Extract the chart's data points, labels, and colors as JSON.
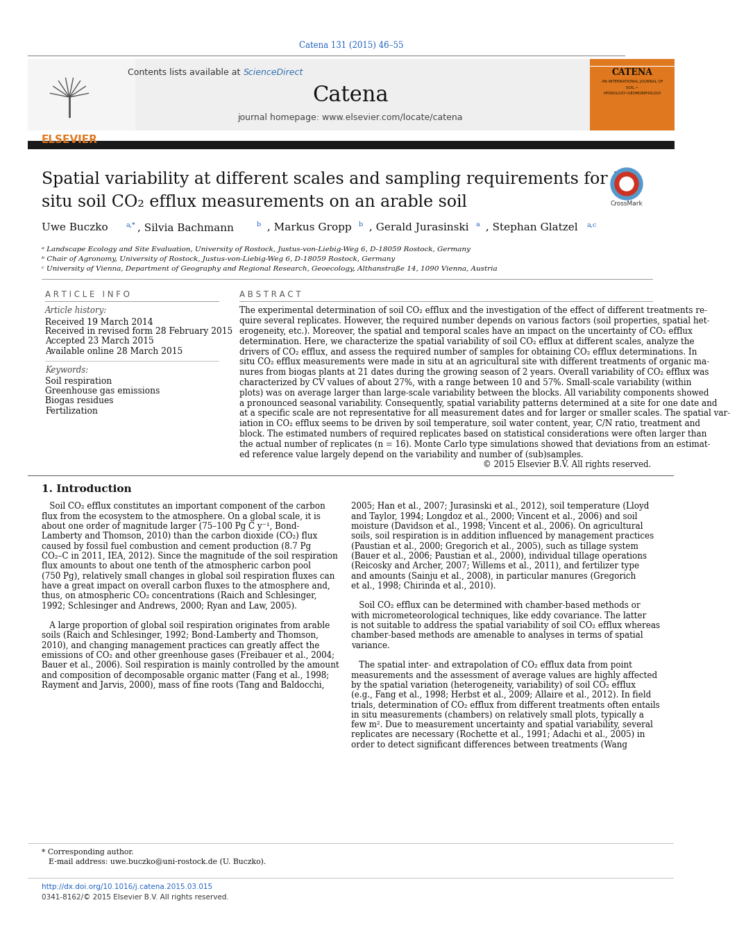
{
  "journal_ref": "Catena 131 (2015) 46–55",
  "journal_name": "Catena",
  "journal_homepage": "journal homepage: www.elsevier.com/locate/catena",
  "title_line1": "Spatial variability at different scales and sampling requirements for in",
  "title_line2": "situ soil CO₂ efflux measurements on an arable soil",
  "affil_a": "ᵃ Landscape Ecology and Site Evaluation, University of Rostock, Justus-von-Liebig-Weg 6, D-18059 Rostock, Germany",
  "affil_b": "ᵇ Chair of Agronomy, University of Rostock, Justus-von-Liebig-Weg 6, D-18059 Rostock, Germany",
  "affil_c": "ᶜ University of Vienna, Department of Geography and Regional Research, Geoecology, Althanstraße 14, 1090 Vienna, Austria",
  "article_info_header": "A R T I C L E   I N F O",
  "abstract_header": "A B S T R A C T",
  "article_history_header": "Article history:",
  "received1": "Received 19 March 2014",
  "received2": "Received in revised form 28 February 2015",
  "accepted": "Accepted 23 March 2015",
  "available": "Available online 28 March 2015",
  "keywords_header": "Keywords:",
  "keyword1": "Soil respiration",
  "keyword2": "Greenhouse gas emissions",
  "keyword3": "Biogas residues",
  "keyword4": "Fertilization",
  "copyright": "© 2015 Elsevier B.V. All rights reserved.",
  "intro_header": "1. Introduction",
  "doi_text": "http://dx.doi.org/10.1016/j.catena.2015.03.015",
  "issn_text": "0341-8162/© 2015 Elsevier B.V. All rights reserved.",
  "bg_color": "#ffffff",
  "orange_color": "#e07820",
  "blue_link": "#2060c0",
  "sci_direct_blue": "#3070b0",
  "abstract_lines": [
    "The experimental determination of soil CO₂ efflux and the investigation of the effect of different treatments re-",
    "quire several replicates. However, the required number depends on various factors (soil properties, spatial het-",
    "erogeneity, etc.). Moreover, the spatial and temporal scales have an impact on the uncertainty of CO₂ efflux",
    "determination. Here, we characterize the spatial variability of soil CO₂ efflux at different scales, analyze the",
    "drivers of CO₂ efflux, and assess the required number of samples for obtaining CO₂ efflux determinations. In",
    "situ CO₂ efflux measurements were made in situ at an agricultural site with different treatments of organic ma-",
    "nures from biogas plants at 21 dates during the growing season of 2 years. Overall variability of CO₂ efflux was",
    "characterized by CV values of about 27%, with a range between 10 and 57%. Small-scale variability (within",
    "plots) was on average larger than large-scale variability between the blocks. All variability components showed",
    "a pronounced seasonal variability. Consequently, spatial variability patterns determined at a site for one date and",
    "at a specific scale are not representative for all measurement dates and for larger or smaller scales. The spatial var-",
    "iation in CO₂ efflux seems to be driven by soil temperature, soil water content, year, C/N ratio, treatment and",
    "block. The estimated numbers of required replicates based on statistical considerations were often larger than",
    "the actual number of replicates (n = 16). Monte Carlo type simulations showed that deviations from an estimat-",
    "ed reference value largely depend on the variability and number of (sub)samples."
  ],
  "intro_left_lines": [
    "   Soil CO₂ efflux constitutes an important component of the carbon",
    "flux from the ecosystem to the atmosphere. On a global scale, it is",
    "about one order of magnitude larger (75–100 Pg C y⁻¹, Bond-",
    "Lamberty and Thomson, 2010) than the carbon dioxide (CO₂) flux",
    "caused by fossil fuel combustion and cement production (8.7 Pg",
    "CO₂–C in 2011, IEA, 2012). Since the magnitude of the soil respiration",
    "flux amounts to about one tenth of the atmospheric carbon pool",
    "(750 Pg), relatively small changes in global soil respiration fluxes can",
    "have a great impact on overall carbon fluxes to the atmosphere and,",
    "thus, on atmospheric CO₂ concentrations (Raich and Schlesinger,",
    "1992; Schlesinger and Andrews, 2000; Ryan and Law, 2005).",
    "",
    "   A large proportion of global soil respiration originates from arable",
    "soils (Raich and Schlesinger, 1992; Bond-Lamberty and Thomson,",
    "2010), and changing management practices can greatly affect the",
    "emissions of CO₂ and other greenhouse gases (Freibauer et al., 2004;",
    "Bauer et al., 2006). Soil respiration is mainly controlled by the amount",
    "and composition of decomposable organic matter (Fang et al., 1998;",
    "Rayment and Jarvis, 2000), mass of fine roots (Tang and Baldocchi,"
  ],
  "intro_right_lines": [
    "2005; Han et al., 2007; Jurasinski et al., 2012), soil temperature (Lloyd",
    "and Taylor, 1994; Longdoz et al., 2000; Vincent et al., 2006) and soil",
    "moisture (Davidson et al., 1998; Vincent et al., 2006). On agricultural",
    "soils, soil respiration is in addition influenced by management practices",
    "(Paustian et al., 2000; Gregorich et al., 2005), such as tillage system",
    "(Bauer et al., 2006; Paustian et al., 2000), individual tillage operations",
    "(Reicosky and Archer, 2007; Willems et al., 2011), and fertilizer type",
    "and amounts (Sainju et al., 2008), in particular manures (Gregorich",
    "et al., 1998; Chirinda et al., 2010).",
    "",
    "   Soil CO₂ efflux can be determined with chamber-based methods or",
    "with micrometeorological techniques, like eddy covariance. The latter",
    "is not suitable to address the spatial variability of soil CO₂ efflux whereas",
    "chamber-based methods are amenable to analyses in terms of spatial",
    "variance.",
    "",
    "   The spatial inter- and extrapolation of CO₂ efflux data from point",
    "measurements and the assessment of average values are highly affected",
    "by the spatial variation (heterogeneity, variability) of soil CO₂ efflux",
    "(e.g., Fang et al., 1998; Herbst et al., 2009; Allaire et al., 2012). In field",
    "trials, determination of CO₂ efflux from different treatments often entails",
    "in situ measurements (chambers) on relatively small plots, typically a",
    "few m². Due to measurement uncertainty and spatial variability, several",
    "replicates are necessary (Rochette et al., 1991; Adachi et al., 2005) in",
    "order to detect significant differences between treatments (Wang"
  ]
}
